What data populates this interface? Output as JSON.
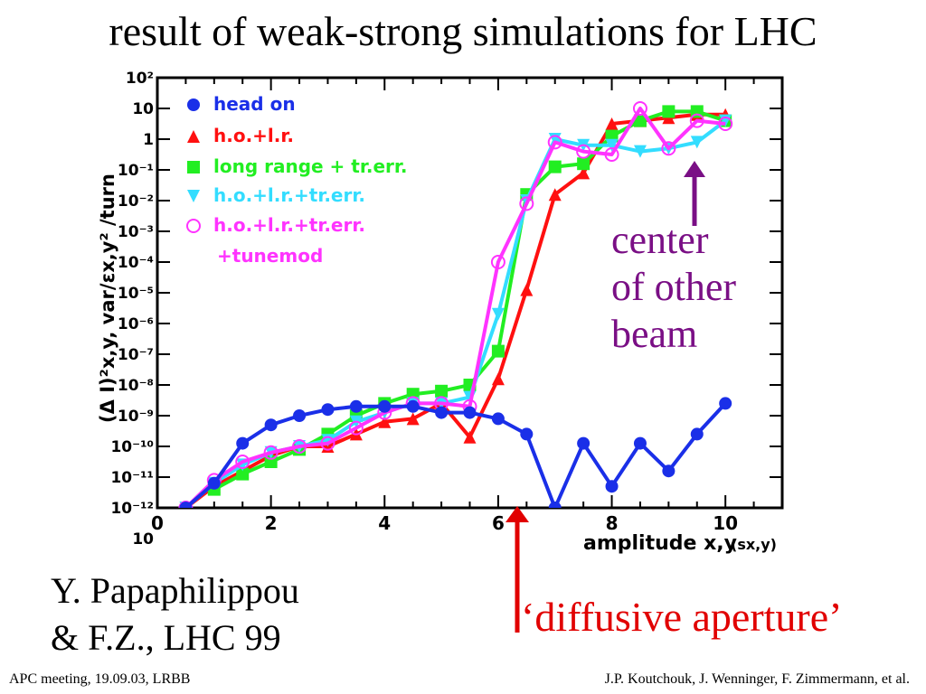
{
  "title": "result of weak-strong simulations for LHC",
  "annotations": {
    "center_lines": [
      "center",
      "of other",
      "beam"
    ],
    "diffusive": "‘diffusive aperture’"
  },
  "credit_lines": [
    "Y. Papaphilippou",
    "& F.Z., LHC 99"
  ],
  "footer": {
    "left": "APC meeting, 19.09.03, LRBB",
    "right": "J.P. Koutchouk, J. Wenninger, F. Zimmermann, et al."
  },
  "colors": {
    "head_on": "#1a2fe8",
    "ho_lr": "#ff1010",
    "long_range": "#22ee22",
    "ho_lr_tr": "#33ddff",
    "ho_lr_tr_tune": "#ff33ff",
    "purple_arrow": "#7a0f85",
    "red_arrow": "#e10000"
  },
  "chart_data": {
    "type": "line",
    "xlabel": "amplitude x,y",
    "xlabel_unit": "(sx,y)",
    "ylabel": "(Δ I)²x,y, var/εx,y² /turn",
    "xlim": [
      0,
      11
    ],
    "ylim_exp": [
      -12,
      2
    ],
    "yscale": "log",
    "x_ticks": [
      "0",
      "2",
      "4",
      "6",
      "8",
      "10"
    ],
    "y_ticks": [
      "10²",
      "10",
      "1",
      "10⁻¹",
      "10⁻²",
      "10⁻³",
      "10⁻⁴",
      "10⁻⁵",
      "10⁻⁶",
      "10⁻⁷",
      "10⁻⁸",
      "10⁻⁹",
      "10⁻¹⁰",
      "10⁻¹¹",
      "10⁻¹²",
      "10"
    ],
    "legend_position": "top-left",
    "series": [
      {
        "name": "head on",
        "marker": "circle",
        "color_key": "head_on",
        "x": [
          0.5,
          1,
          1.5,
          2,
          2.5,
          3,
          3.5,
          4,
          4.5,
          5,
          5.5,
          6,
          6.5,
          7,
          7.5,
          8,
          8.5,
          9,
          9.5,
          10
        ],
        "y_exp": [
          -12,
          -11.2,
          -9.9,
          -9.3,
          -9.0,
          -8.8,
          -8.7,
          -8.7,
          -8.7,
          -8.9,
          -8.9,
          -9.1,
          -9.6,
          -12,
          -9.9,
          -11.3,
          -9.9,
          -10.8,
          -9.6,
          -8.6
        ]
      },
      {
        "name": "h.o.+l.r.",
        "marker": "triangle-up",
        "color_key": "ho_lr",
        "x": [
          0.5,
          1,
          1.5,
          2,
          2.5,
          3,
          3.5,
          4,
          4.5,
          5,
          5.5,
          6,
          6.5,
          7,
          7.5,
          8,
          8.5,
          9,
          9.5,
          10
        ],
        "y_exp": [
          -12,
          -11.3,
          -10.8,
          -10.3,
          -10.0,
          -10.0,
          -9.6,
          -9.2,
          -9.1,
          -8.6,
          -9.7,
          -7.8,
          -4.9,
          -1.8,
          -1.1,
          0.5,
          0.6,
          0.7,
          0.8,
          0.8
        ]
      },
      {
        "name": "long range + tr.err.",
        "marker": "square",
        "color_key": "long_range",
        "x": [
          1,
          1.5,
          2,
          2.5,
          3,
          3.5,
          4,
          4.5,
          5,
          5.5,
          6,
          6.5,
          7,
          7.5,
          8,
          8.5,
          9,
          9.5,
          10
        ],
        "y_exp": [
          -11.4,
          -10.9,
          -10.5,
          -10.1,
          -9.6,
          -9.0,
          -8.6,
          -8.3,
          -8.2,
          -8.0,
          -6.9,
          -1.8,
          -0.9,
          -0.8,
          0.1,
          0.6,
          0.9,
          0.9,
          0.6
        ]
      },
      {
        "name": "h.o.+l.r.+tr.err.",
        "marker": "triangle-down",
        "color_key": "ho_lr_tr",
        "x": [
          0.5,
          1,
          1.5,
          2,
          2.5,
          3,
          3.5,
          4,
          4.5,
          5,
          5.5,
          6,
          6.5,
          7,
          7.5,
          8,
          8.5,
          9,
          9.5,
          10
        ],
        "y_exp": [
          -12,
          -11.2,
          -10.6,
          -10.2,
          -10.0,
          -9.8,
          -9.2,
          -8.9,
          -8.6,
          -8.6,
          -8.4,
          -5.7,
          -2.0,
          0,
          -0.2,
          -0.2,
          -0.4,
          -0.3,
          -0.1,
          0.6
        ]
      },
      {
        "name": "h.o.+l.r.+tr.err. +tunemod",
        "name_lines": [
          "h.o.+l.r.+tr.err.",
          "+tunemod"
        ],
        "marker": "open-circle",
        "color_key": "ho_lr_tr_tune",
        "x": [
          0.5,
          1,
          1.5,
          2,
          2.5,
          3,
          3.5,
          4,
          4.5,
          5,
          5.5,
          6,
          6.5,
          7,
          7.5,
          8,
          8.5,
          9,
          9.5,
          10
        ],
        "y_exp": [
          -12,
          -11.1,
          -10.5,
          -10.2,
          -10.0,
          -9.9,
          -9.4,
          -8.9,
          -8.6,
          -8.6,
          -8.7,
          -4.0,
          -2.1,
          -0.1,
          -0.4,
          -0.5,
          1.0,
          -0.3,
          0.6,
          0.5
        ]
      }
    ]
  }
}
